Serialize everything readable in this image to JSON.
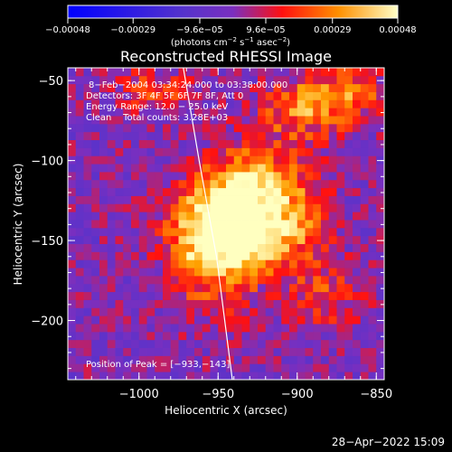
{
  "chart_data": {
    "type": "heatmap",
    "title": "Reconstructed RHESSI Image",
    "xlabel": "Heliocentric X (arcsec)",
    "ylabel": "Heliocentric Y (arcsec)",
    "xlim": [
      -1045,
      -845
    ],
    "ylim": [
      -237,
      -42
    ],
    "x_ticks": [
      {
        "value": -1000,
        "label": "−1000"
      },
      {
        "value": -950,
        "label": "−950"
      },
      {
        "value": -900,
        "label": "−900"
      },
      {
        "value": -850,
        "label": "−850"
      }
    ],
    "y_ticks": [
      {
        "value": -50,
        "label": "−50"
      },
      {
        "value": -100,
        "label": "−100"
      },
      {
        "value": -150,
        "label": "−150"
      },
      {
        "value": -200,
        "label": "−200"
      }
    ],
    "colorbar": {
      "range": [
        -0.00048,
        0.00048
      ],
      "ticks": [
        {
          "value": -0.00048,
          "label": "−0.00048"
        },
        {
          "value": -0.00029,
          "label": "−0.00029"
        },
        {
          "value": -9.6e-05,
          "label": "−9.6e−05"
        },
        {
          "value": 9.6e-05,
          "label": "9.6e−05"
        },
        {
          "value": 0.00029,
          "label": "0.00029"
        },
        {
          "value": 0.00048,
          "label": "0.00048"
        }
      ],
      "units_main": "(photons cm",
      "units_exp1": "−2",
      "units_mid": " s",
      "units_exp2": "−1",
      "units_mid2": " asec",
      "units_exp3": "−2",
      "units_end": ")"
    },
    "peak_position": [
      -933,
      -143
    ],
    "limb_curve": [
      [
        -972,
        -42
      ],
      [
        -962,
        -100
      ],
      [
        -951,
        -160
      ],
      [
        -941,
        -237
      ]
    ],
    "sources": [
      {
        "x": -935,
        "y": -140,
        "value": 0.00048,
        "sx": 22,
        "sy": 18
      },
      {
        "x": -953,
        "y": -150,
        "value": 0.00038,
        "sx": 20,
        "sy": 26
      },
      {
        "x": -925,
        "y": -110,
        "value": 0.0003,
        "sx": 18,
        "sy": 14
      },
      {
        "x": -895,
        "y": -70,
        "value": 0.00026,
        "sx": 22,
        "sy": 12
      },
      {
        "x": -870,
        "y": -55,
        "value": 0.00022,
        "sx": 20,
        "sy": 10
      },
      {
        "x": -990,
        "y": -55,
        "value": 0.00016,
        "sx": 18,
        "sy": 10
      },
      {
        "x": -900,
        "y": -140,
        "value": 0.00018,
        "sx": 16,
        "sy": 22
      },
      {
        "x": -880,
        "y": -185,
        "value": 0.00016,
        "sx": 16,
        "sy": 14
      }
    ],
    "colors": {
      "negative_end": "#0000ff",
      "zero": "#7a2fbf",
      "mid_positive": "#ff1010",
      "high_positive": "#ffa000",
      "positive_end": "#ffffc0"
    }
  },
  "info": {
    "date_line": "8−Feb−2004 03:34:24.000 to 03:38:00.000",
    "detectors_line": "Detectors: 3F 4F 5F 6F 7F 8F, Att 0",
    "energy_line": "Energy Range: 12.0 − 25.0 keV",
    "clean_line": "Clean    Total counts: 3.28E+03",
    "peak_line": "Position of Peak = [−933,−143]"
  },
  "footer": {
    "timestamp": "28−Apr−2022 15:09"
  }
}
